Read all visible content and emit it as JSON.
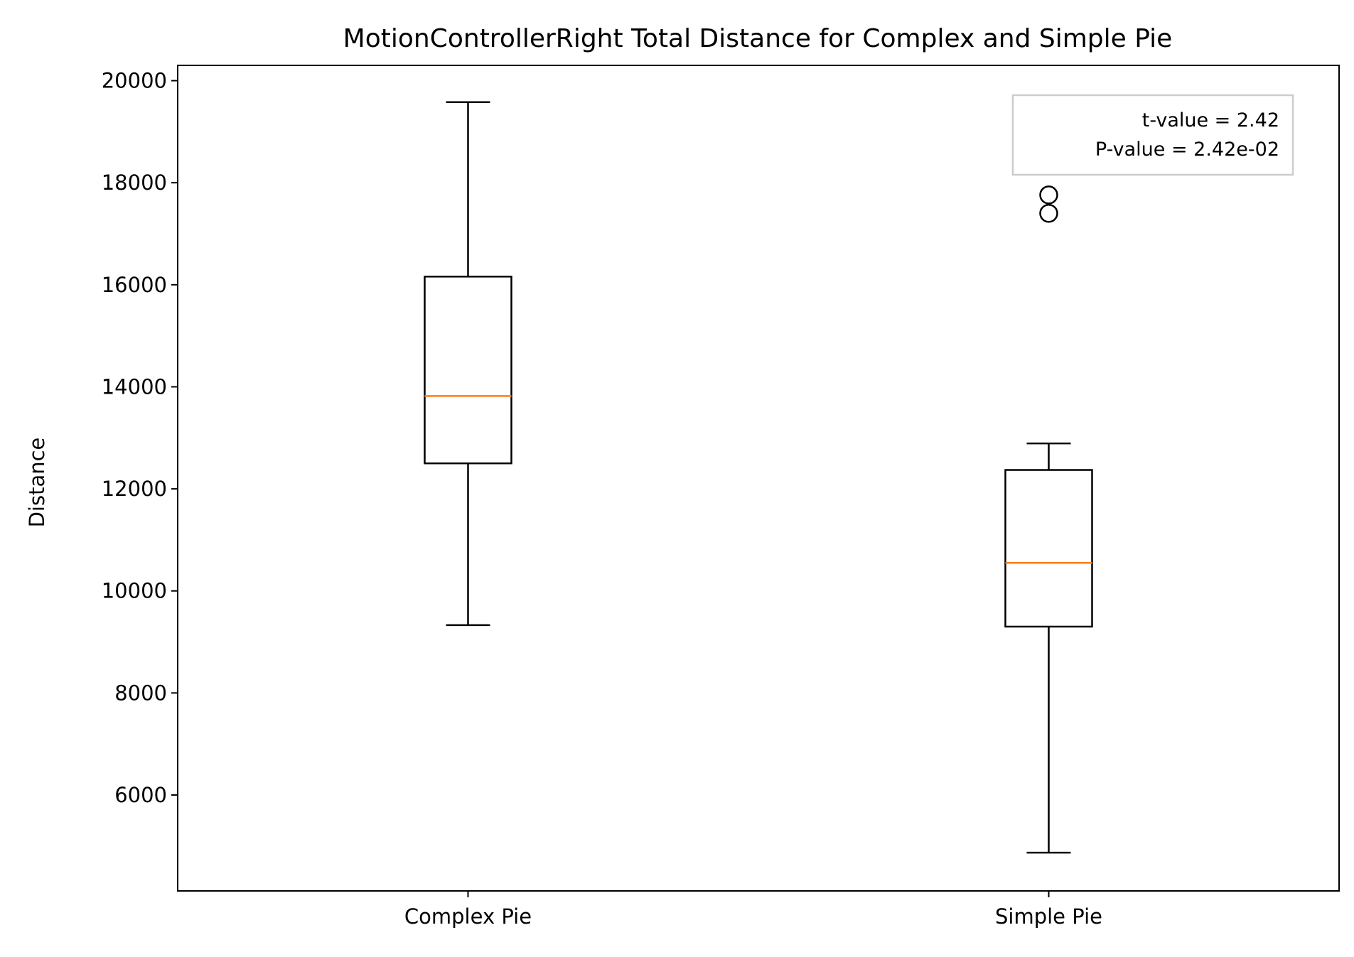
{
  "chart_data": {
    "type": "box",
    "title": "MotionControllerRight Total Distance for Complex and Simple Pie",
    "xlabel": "",
    "ylabel": "Distance",
    "categories": [
      "Complex Pie",
      "Simple Pie"
    ],
    "ylim": [
      4120,
      20300
    ],
    "yticks": [
      6000,
      8000,
      10000,
      12000,
      14000,
      16000,
      18000,
      20000
    ],
    "ytick_labels": [
      "6000",
      "8000",
      "10000",
      "12000",
      "14000",
      "16000",
      "18000",
      "20000"
    ],
    "grid": false,
    "boxes": [
      {
        "category": "Complex Pie",
        "whisker_low": 9330,
        "q1": 12500,
        "median": 13820,
        "q3": 16160,
        "whisker_high": 19580,
        "outliers": []
      },
      {
        "category": "Simple Pie",
        "whisker_low": 4870,
        "q1": 9300,
        "median": 10550,
        "q3": 12370,
        "whisker_high": 12890,
        "outliers": [
          17400,
          17760
        ]
      }
    ],
    "annotation": {
      "lines": [
        "t-value = 2.42",
        "P-value = 2.42e-02"
      ],
      "placement": "top-right"
    },
    "colors": {
      "box": "#000000",
      "median": "#ff7f0e",
      "annotation_border": "#cccccc"
    }
  }
}
